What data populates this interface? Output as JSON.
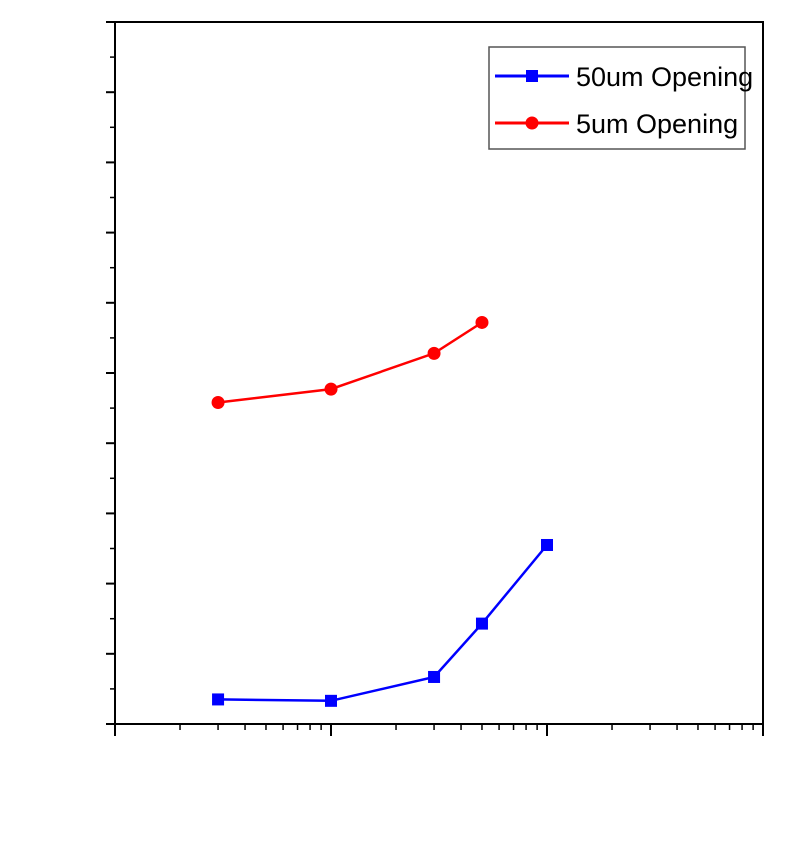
{
  "chart_data": {
    "type": "line",
    "title": "",
    "xlabel": "",
    "ylabel": "",
    "xscale": "log",
    "xlim": [
      1,
      1000
    ],
    "ylim": [
      0,
      10
    ],
    "grid": false,
    "legend_position": "top-right",
    "series": [
      {
        "name": "50um Opening",
        "color": "#0000ff",
        "marker": "square",
        "x": [
          3,
          10,
          30,
          50,
          100
        ],
        "y": [
          0.35,
          0.33,
          0.67,
          1.43,
          2.55
        ]
      },
      {
        "name": "5um Opening",
        "color": "#ff0000",
        "marker": "circle",
        "x": [
          3,
          10,
          30,
          50
        ],
        "y": [
          4.58,
          4.77,
          5.28,
          5.72
        ]
      }
    ]
  }
}
